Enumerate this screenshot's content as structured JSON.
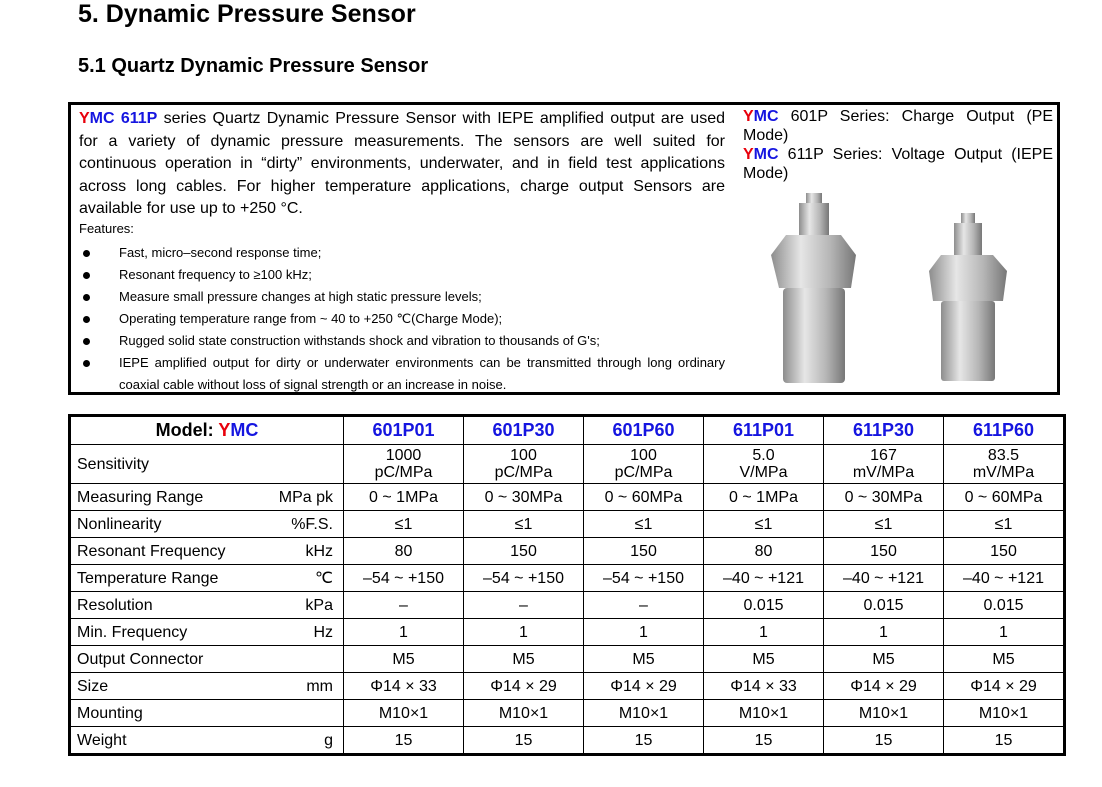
{
  "heading": "5.  Dynamic Pressure Sensor",
  "subheading": "5.1 Quartz Dynamic Pressure Sensor",
  "intro": {
    "brand_y": "Y",
    "brand_mc": "MC",
    "model": "611P",
    "text": " series Quartz Dynamic Pressure Sensor with IEPE amplified output are used for a variety of dynamic pressure measurements. The sensors are well suited for continuous operation in “dirty” environments, underwater, and in field test applications across long cables. For higher temperature applications, charge output Sensors are available for use up to +250 °C."
  },
  "features_title": "Features:",
  "features": [
    "Fast, micro–second response time;",
    "Resonant frequency to ≥100 kHz;",
    "Measure small pressure changes at high static pressure levels;",
    "Operating temperature range from ~ 40 to +250 ℃(Charge Mode);",
    "Rugged solid state construction withstands shock and vibration to thousands of G's;",
    "IEPE amplified output for dirty or underwater environments can be transmitted through long ordinary coaxial cable without loss of signal strength or an increase in noise."
  ],
  "series": [
    {
      "y": "Y",
      "mc": "MC",
      "text": " 601P Series: Charge Output (PE Mode)"
    },
    {
      "y": "Y",
      "mc": "MC",
      "text": " 611P Series: Voltage Output (IEPE Mode)"
    }
  ],
  "table": {
    "model_label": "Model: ",
    "brand_y": "Y",
    "brand_mc": "MC",
    "models": [
      "601P01",
      "601P30",
      "601P60",
      "611P01",
      "611P30",
      "611P60"
    ],
    "rows": [
      {
        "label": "Sensitivity",
        "unit": "",
        "values": [
          "1000 pC/MPa",
          "100 pC/MPa",
          "100 pC/MPa",
          "5.0 V/MPa",
          "167 mV/MPa",
          "83.5 mV/MPa"
        ]
      },
      {
        "label": "Measuring Range",
        "unit": "MPa pk",
        "values": [
          "0 ~ 1MPa",
          "0 ~ 30MPa",
          "0 ~ 60MPa",
          "0 ~ 1MPa",
          "0 ~ 30MPa",
          "0 ~ 60MPa"
        ]
      },
      {
        "label": "Nonlinearity",
        "unit": "%F.S.",
        "values": [
          "≤1",
          "≤1",
          "≤1",
          "≤1",
          "≤1",
          "≤1"
        ]
      },
      {
        "label": "Resonant Frequency",
        "unit": "kHz",
        "values": [
          "80",
          "150",
          "150",
          "80",
          "150",
          "150"
        ]
      },
      {
        "label": "Temperature Range",
        "unit": "℃",
        "values": [
          "–54 ~ +150",
          "–54 ~ +150",
          "–54 ~ +150",
          "–40 ~ +121",
          "–40 ~ +121",
          "–40 ~ +121"
        ]
      },
      {
        "label": "Resolution",
        "unit": "kPa",
        "values": [
          "–",
          "–",
          "–",
          "0.015",
          "0.015",
          "0.015"
        ]
      },
      {
        "label": "Min. Frequency",
        "unit": "Hz",
        "values": [
          "1",
          "1",
          "1",
          "1",
          "1",
          "1"
        ]
      },
      {
        "label": "Output Connector",
        "unit": "",
        "values": [
          "M5",
          "M5",
          "M5",
          "M5",
          "M5",
          "M5"
        ]
      },
      {
        "label": "Size",
        "unit": "mm",
        "values": [
          "Φ14 × 33",
          "Φ14 × 29",
          "Φ14 × 29",
          "Φ14 × 33",
          "Φ14 × 29",
          "Φ14 × 29"
        ]
      },
      {
        "label": "Mounting",
        "unit": "",
        "values": [
          "M10×1",
          "M10×1",
          "M10×1",
          "M10×1",
          "M10×1",
          "M10×1"
        ]
      },
      {
        "label": "Weight",
        "unit": "g",
        "values": [
          "15",
          "15",
          "15",
          "15",
          "15",
          "15"
        ]
      }
    ]
  },
  "colors": {
    "brand_red": "#e8000b",
    "brand_blue": "#1515e0"
  }
}
